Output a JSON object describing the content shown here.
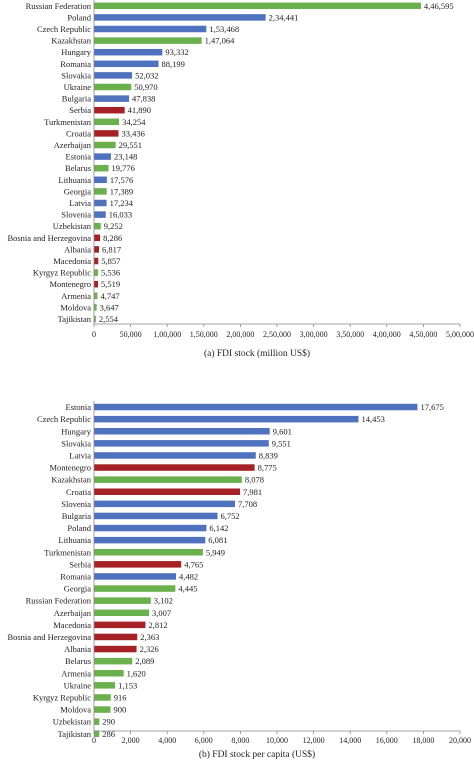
{
  "colors": {
    "green": "#6ab04c",
    "blue": "#4f72be",
    "red": "#a52125",
    "axis": "#888888",
    "text": "#222222"
  },
  "chart_data": [
    {
      "type": "bar",
      "orientation": "horizontal",
      "title": "(a) FDI stock (million US$)",
      "xlim": [
        0,
        500000
      ],
      "x_ticks": [
        "0",
        "50,000",
        "1,00,000",
        "1,50,000",
        "2,00,000",
        "2,50,000",
        "3,00,000",
        "3,50,000",
        "4,00,000",
        "4,50,000",
        "5,00,000"
      ],
      "categories": [
        "Russian Federation",
        "Poland",
        "Czech Republic",
        "Kazakhstan",
        "Hungary",
        "Romania",
        "Slovakia",
        "Ukraine",
        "Bulgaria",
        "Serbia",
        "Turkmenistan",
        "Croatia",
        "Azerbaijan",
        "Estonia",
        "Belarus",
        "Lithuania",
        "Georgia",
        "Latvia",
        "Slovenia",
        "Uzbekistan",
        "Bosnia and Herzegovina",
        "Albania",
        "Macedonia",
        "Kyrgyz Republic",
        "Montenegro",
        "Armenia",
        "Moldova",
        "Tajikistan"
      ],
      "values": [
        446595,
        234441,
        153468,
        147064,
        93332,
        88199,
        52032,
        50970,
        47838,
        41890,
        34254,
        33436,
        29551,
        23148,
        19776,
        17576,
        17389,
        17234,
        16033,
        9252,
        8286,
        6817,
        5857,
        5536,
        5519,
        4747,
        3647,
        2554
      ],
      "labels": [
        "4,46,595",
        "2,34,441",
        "1,53,468",
        "1,47,064",
        "93,332",
        "88,199",
        "52,032",
        "50,970",
        "47,838",
        "41,890",
        "34,254",
        "33,436",
        "29,551",
        "23,148",
        "19,776",
        "17,576",
        "17,389",
        "17,234",
        "16,033",
        "9,252",
        "8,286",
        "6,817",
        "5,857",
        "5,536",
        "5,519",
        "4,747",
        "3,647",
        "2,554"
      ],
      "colors": [
        "green",
        "blue",
        "blue",
        "green",
        "blue",
        "blue",
        "blue",
        "green",
        "blue",
        "red",
        "green",
        "red",
        "green",
        "blue",
        "green",
        "blue",
        "green",
        "blue",
        "blue",
        "green",
        "red",
        "red",
        "red",
        "green",
        "red",
        "green",
        "green",
        "green"
      ],
      "grid": false
    },
    {
      "type": "bar",
      "orientation": "horizontal",
      "title": "(b) FDI stock per capita (US$)",
      "xlim": [
        0,
        20000
      ],
      "x_ticks": [
        "0",
        "2,000",
        "4,000",
        "6,000",
        "8,000",
        "10,000",
        "12,000",
        "14,000",
        "16,000",
        "18,000",
        "20,000"
      ],
      "categories": [
        "Estonia",
        "Czech Republic",
        "Hungary",
        "Slovakia",
        "Latvia",
        "Montenegro",
        "Kazakhstan",
        "Croatia",
        "Slovenia",
        "Bulgaria",
        "Poland",
        "Lithuania",
        "Turkmenistan",
        "Serbia",
        "Romania",
        "Georgia",
        "Russian Federation",
        "Azerbaijan",
        "Macedonia",
        "Bosnia and Herzegovina",
        "Albania",
        "Belarus",
        "Armenia",
        "Ukraine",
        "Kyrgyz Republic",
        "Moldova",
        "Uzbekistan",
        "Tajikistan"
      ],
      "values": [
        17675,
        14453,
        9601,
        9551,
        8839,
        8775,
        8078,
        7981,
        7708,
        6752,
        6142,
        6081,
        5949,
        4765,
        4482,
        4445,
        3102,
        3007,
        2812,
        2363,
        2326,
        2089,
        1620,
        1153,
        916,
        900,
        290,
        286
      ],
      "labels": [
        "17,675",
        "14,453",
        "9,601",
        "9,551",
        "8,839",
        "8,775",
        "8,078",
        "7,981",
        "7,708",
        "6,752",
        "6,142",
        "6,081",
        "5,949",
        "4,765",
        "4,482",
        "4,445",
        "3,102",
        "3,007",
        "2,812",
        "2,363",
        "2,326",
        "2,089",
        "1,620",
        "1,153",
        "916",
        "900",
        "290",
        "286"
      ],
      "colors": [
        "blue",
        "blue",
        "blue",
        "blue",
        "blue",
        "red",
        "green",
        "red",
        "blue",
        "blue",
        "blue",
        "blue",
        "green",
        "red",
        "blue",
        "green",
        "green",
        "green",
        "red",
        "red",
        "red",
        "green",
        "green",
        "green",
        "green",
        "green",
        "green",
        "green"
      ],
      "grid": false
    }
  ]
}
